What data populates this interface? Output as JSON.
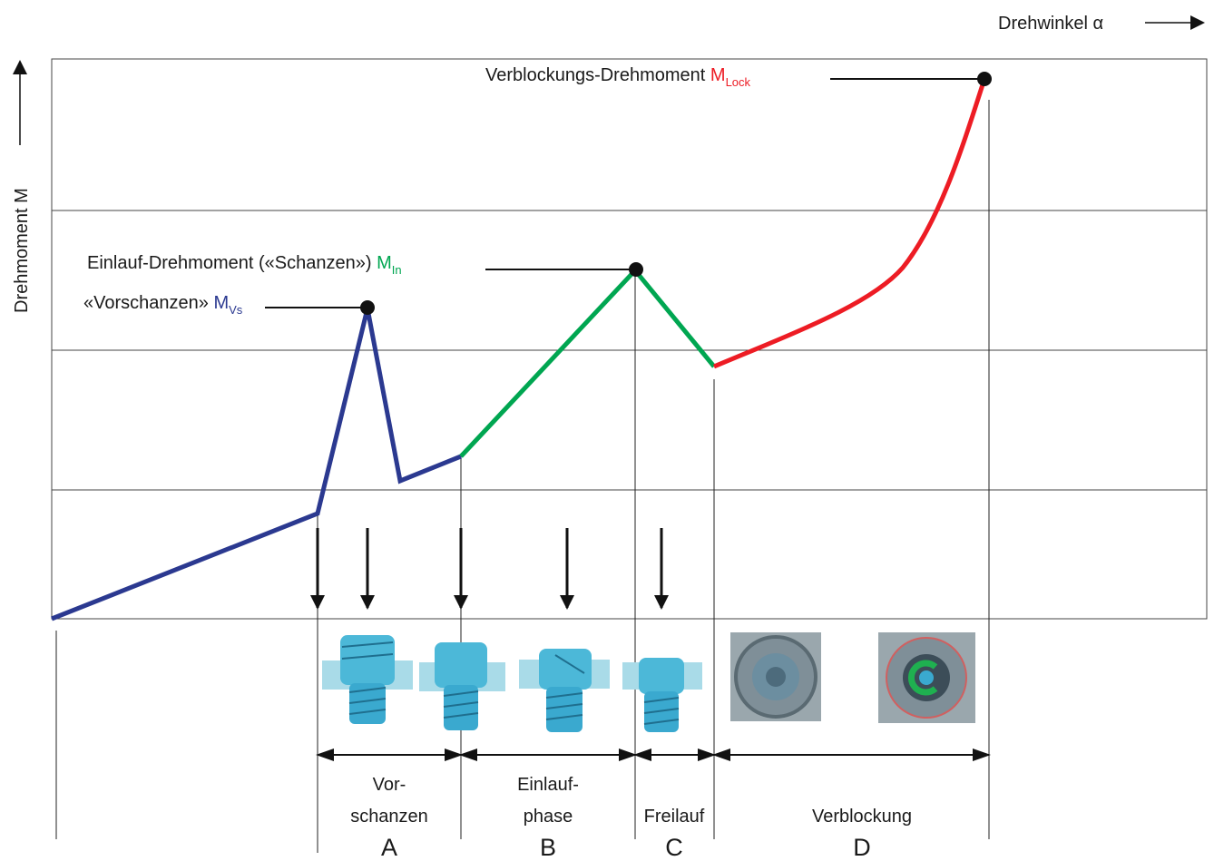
{
  "axes": {
    "x_label": "Drehwinkel α",
    "y_label": "Drehmoment M"
  },
  "annotations": [
    {
      "text": "Verblockungs-Drehmoment",
      "symbol": "M",
      "subscript": "Lock"
    },
    {
      "text": "Einlauf-Drehmoment («Schanzen»)",
      "symbol": "M",
      "subscript": "In"
    },
    {
      "text": "«Vorschanzen»",
      "symbol": "M",
      "subscript": "Vs"
    }
  ],
  "phases": [
    {
      "label": [
        "Vor-",
        "schanzen"
      ],
      "letter": "A"
    },
    {
      "label": [
        "Einlauf-",
        "phase"
      ],
      "letter": "B"
    },
    {
      "label": [
        "Freilauf"
      ],
      "letter": "C"
    },
    {
      "label": [
        "Verblockung"
      ],
      "letter": "D"
    }
  ]
}
